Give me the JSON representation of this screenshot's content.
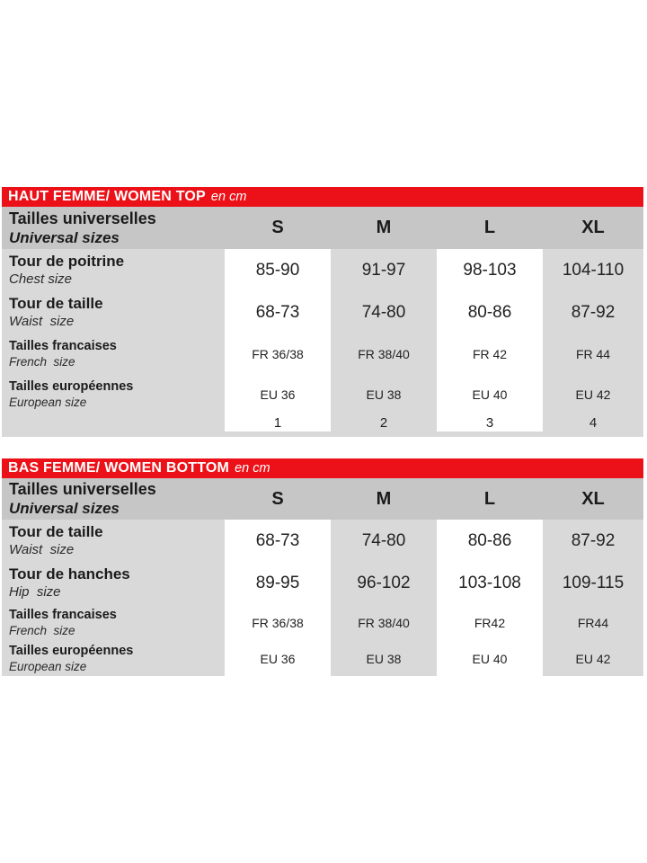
{
  "colors": {
    "accent_red": "#ec1118",
    "header_row_gray": "#c6c6c6",
    "table_body_gray": "#d9d9d9",
    "column_stripe_white": "#ffffff",
    "text_dark": "#1b1b1b"
  },
  "tables": [
    {
      "title": "HAUT FEMME/ WOMEN TOP",
      "unit": "en cm",
      "header": {
        "label_fr": "Tailles universelles",
        "label_en": "Universal sizes",
        "sizes": [
          "S",
          "M",
          "L",
          "XL"
        ]
      },
      "rows": [
        {
          "label_fr": "Tour de poitrine",
          "label_en": "Chest size",
          "values": [
            "85-90",
            "91-97",
            "98-103",
            "104-110"
          ]
        },
        {
          "label_fr": "Tour de taille",
          "label_en": "Waist  size",
          "values": [
            "68-73",
            "74-80",
            "80-86",
            "87-92"
          ]
        },
        {
          "label_fr": "Tailles francaises",
          "label_en": "French  size",
          "values": [
            "FR 36/38",
            "FR 38/40",
            "FR 42",
            "FR 44"
          ]
        },
        {
          "label_fr": "Tailles européennes",
          "label_en": "European size",
          "values": [
            "EU 36",
            "EU 38",
            "EU 40",
            "EU 42"
          ]
        },
        {
          "label_fr": "",
          "label_en": "",
          "values": [
            "1",
            "2",
            "3",
            "4"
          ]
        }
      ]
    },
    {
      "title": "BAS FEMME/ WOMEN BOTTOM",
      "unit": "en cm",
      "header": {
        "label_fr": "Tailles universelles",
        "label_en": "Universal sizes",
        "sizes": [
          "S",
          "M",
          "L",
          "XL"
        ]
      },
      "rows": [
        {
          "label_fr": "Tour de taille",
          "label_en": "Waist  size",
          "values": [
            "68-73",
            "74-80",
            "80-86",
            "87-92"
          ]
        },
        {
          "label_fr": "Tour de hanches",
          "label_en": "Hip  size",
          "values": [
            "89-95",
            "96-102",
            "103-108",
            "109-115"
          ]
        },
        {
          "label_fr": "Tailles francaises",
          "label_en": "French  size",
          "values": [
            "FR 36/38",
            "FR 38/40",
            "FR42",
            "FR44"
          ]
        },
        {
          "label_fr": "Tailles européennes",
          "label_en": "European size",
          "values": [
            "EU 36",
            "EU 38",
            "EU 40",
            "EU 42"
          ]
        }
      ]
    }
  ]
}
